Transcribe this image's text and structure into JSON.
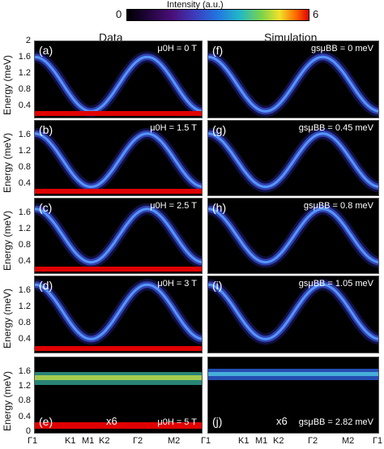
{
  "colorbar": {
    "title": "Intensity (a.u.)",
    "min": "0",
    "max": "6"
  },
  "columns": {
    "left": "Data",
    "right": "Simulation"
  },
  "y_axis": {
    "label": "Energy (meV)",
    "ticks": [
      "2",
      "1.6",
      "1.2",
      "0.8",
      "0.4",
      "0"
    ],
    "ticks_short": [
      "1.6",
      "1.2",
      "0.8",
      "0.4",
      "0"
    ]
  },
  "x_ticks": [
    "Γ1",
    "K1",
    "M1",
    "K2",
    "Γ2",
    "M2",
    "Γ1"
  ],
  "panels_left": [
    {
      "label": "(a)",
      "cond": "μ0H = 0 T",
      "x6": ""
    },
    {
      "label": "(b)",
      "cond": "μ0H = 1.5 T",
      "x6": ""
    },
    {
      "label": "(c)",
      "cond": "μ0H = 2.5 T",
      "x6": ""
    },
    {
      "label": "(d)",
      "cond": "μ0H = 3 T",
      "x6": ""
    },
    {
      "label": "(e)",
      "cond": "μ0H = 5 T",
      "x6": "x6"
    }
  ],
  "panels_right": [
    {
      "label": "(f)",
      "cond": "gsμBB = 0 meV",
      "x6": ""
    },
    {
      "label": "(g)",
      "cond": "gsμBB = 0.45 meV",
      "x6": ""
    },
    {
      "label": "(h)",
      "cond": "gsμBB = 0.8 meV",
      "x6": ""
    },
    {
      "label": "(i)",
      "cond": "gsμBB = 1.05 meV",
      "x6": ""
    },
    {
      "label": "(j)",
      "cond": "gsμBB = 2.82 meV",
      "x6": "x6"
    }
  ],
  "colors": {
    "panel_bg": "#000000",
    "band_mid": "#3a4fd0",
    "band_core": "#5aa0ff",
    "hot": "#e00000"
  }
}
